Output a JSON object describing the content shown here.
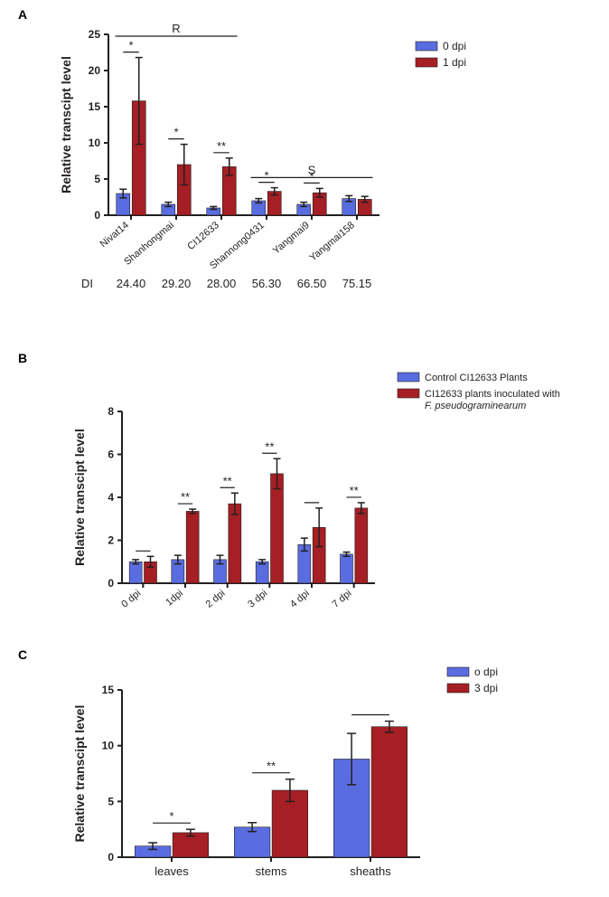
{
  "global": {
    "colors": {
      "bar_blue": "#5a6de0",
      "bar_red": "#a51f24",
      "axis": "#231f20",
      "text": "#231f20",
      "white": "#ffffff"
    },
    "font_family": "Arial",
    "tick_fontsize": 12,
    "axis_label_fontsize": 13,
    "axis_label_weight": "bold"
  },
  "panelA": {
    "label": "A",
    "type": "bar",
    "yaxis_title": "Relative transcipt level",
    "ylim": [
      0,
      25
    ],
    "ytick_step": 5,
    "categories": [
      "Nivat14",
      "Shanhongmai",
      "CI12633",
      "Shannong0431",
      "Yangmai9",
      "Yangmai158"
    ],
    "series": [
      {
        "name": "0 dpi",
        "color": "#5a6de0",
        "values": [
          3.0,
          1.5,
          1.0,
          2.0,
          1.5,
          2.3
        ],
        "err": [
          0.6,
          0.3,
          0.2,
          0.3,
          0.3,
          0.4
        ]
      },
      {
        "name": "1 dpi",
        "color": "#a51f24",
        "values": [
          15.8,
          7.0,
          6.7,
          3.3,
          3.1,
          2.2
        ],
        "err": [
          6.0,
          2.8,
          1.2,
          0.5,
          0.6,
          0.4
        ]
      }
    ],
    "sig": [
      "*",
      "*",
      "**",
      "*",
      "*",
      ""
    ],
    "group_brackets": [
      {
        "label": "R",
        "start": 0,
        "end": 2
      },
      {
        "label": "S",
        "start": 3,
        "end": 5
      }
    ],
    "di_row": {
      "label": "DI",
      "values": [
        "24.40",
        "29.20",
        "28.00",
        "56.30",
        "66.50",
        "75.15"
      ]
    }
  },
  "panelB": {
    "label": "B",
    "type": "bar",
    "yaxis_title": "Relative transcipt level",
    "ylim": [
      0,
      8
    ],
    "ytick_step": 2,
    "categories": [
      "0 dpi",
      "1dpi",
      "2 dpi",
      "3 dpi",
      "4 dpi",
      "7 dpi"
    ],
    "series": [
      {
        "name": "Control CI12633 Plants",
        "color": "#5a6de0",
        "values": [
          1.0,
          1.1,
          1.1,
          1.0,
          1.8,
          1.35
        ],
        "err": [
          0.1,
          0.2,
          0.2,
          0.1,
          0.3,
          0.1
        ]
      },
      {
        "name": "CI12633 plants inoculated with",
        "name2": "F. pseudograminearum",
        "color": "#a51f24",
        "values": [
          1.0,
          3.35,
          3.7,
          5.1,
          2.6,
          3.5
        ],
        "err": [
          0.25,
          0.1,
          0.5,
          0.7,
          0.9,
          0.25
        ]
      }
    ],
    "sig": [
      "",
      "**",
      "**",
      "**",
      "",
      "**"
    ]
  },
  "panelC": {
    "label": "C",
    "type": "bar",
    "yaxis_title": "Relative transcipt level",
    "ylim": [
      0,
      15
    ],
    "ytick_step": 5,
    "categories": [
      "leaves",
      "stems",
      "sheaths"
    ],
    "series": [
      {
        "name": "o dpi",
        "color": "#5a6de0",
        "values": [
          1.0,
          2.7,
          8.8
        ],
        "err": [
          0.3,
          0.4,
          2.3
        ]
      },
      {
        "name": "3 dpi",
        "color": "#a51f24",
        "values": [
          2.2,
          6.0,
          11.7
        ],
        "err": [
          0.3,
          1.0,
          0.5
        ]
      }
    ],
    "sig": [
      "*",
      "**",
      ""
    ]
  }
}
